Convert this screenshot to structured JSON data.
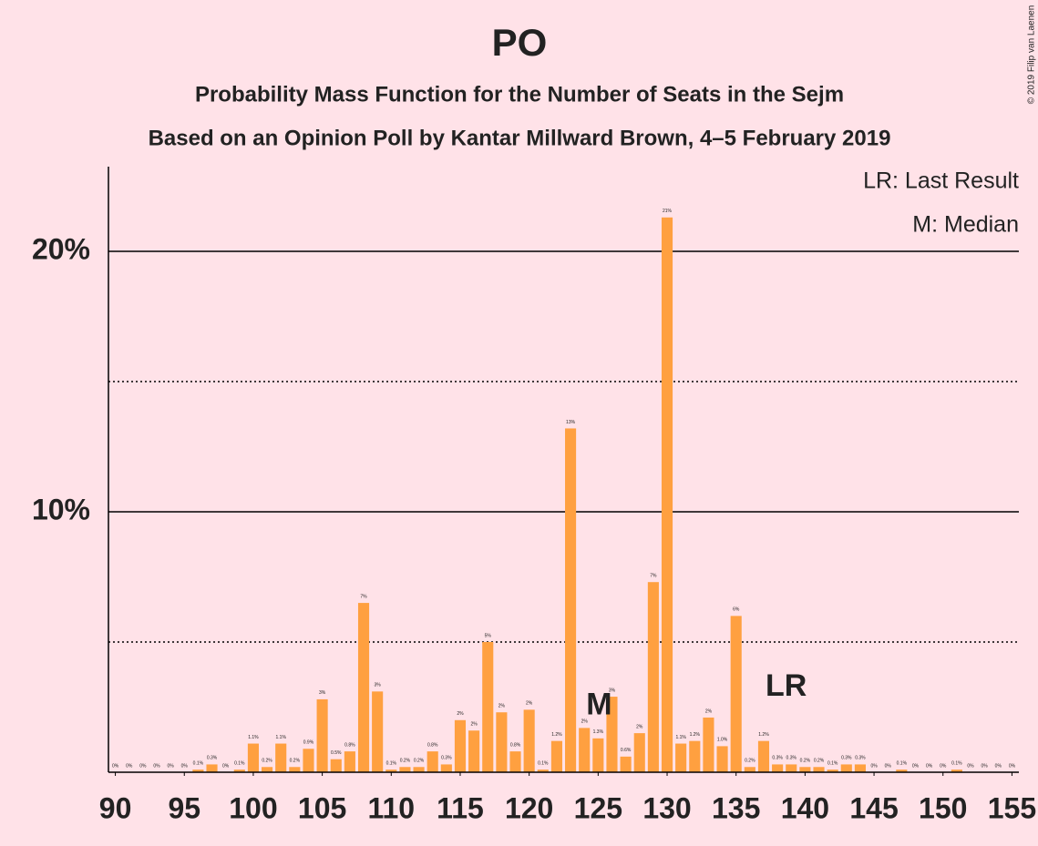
{
  "chart_data": {
    "type": "bar",
    "title": "PO",
    "subtitle": "Probability Mass Function for the Number of Seats in the Sejm",
    "subtitle2": "Based on an Opinion Poll by Kantar Millward Brown, 4–5 February 2019",
    "copyright": "© 2019 Filip van Laenen",
    "legend": [
      "LR: Last Result",
      "M: Median"
    ],
    "color": "#ffa040",
    "x": [
      90,
      91,
      92,
      93,
      94,
      95,
      96,
      97,
      98,
      99,
      100,
      101,
      102,
      103,
      104,
      105,
      106,
      107,
      108,
      109,
      110,
      111,
      112,
      113,
      114,
      115,
      116,
      117,
      118,
      119,
      120,
      121,
      122,
      123,
      124,
      125,
      126,
      127,
      128,
      129,
      130,
      131,
      132,
      133,
      134,
      135,
      136,
      137,
      138,
      139,
      140,
      141,
      142,
      143,
      144,
      145,
      146,
      147,
      148,
      149,
      150,
      151,
      152,
      153,
      154,
      155
    ],
    "values": [
      0,
      0,
      0,
      0,
      0,
      0,
      0.1,
      0.3,
      0,
      0.1,
      1.1,
      0.2,
      1.1,
      0.2,
      0.9,
      2.8,
      0.5,
      0.8,
      6.5,
      3.1,
      0.1,
      0.2,
      0.2,
      0.8,
      0.3,
      2.0,
      1.6,
      5.0,
      2.3,
      0.8,
      2.4,
      0.1,
      1.2,
      13.2,
      1.7,
      1.3,
      2.9,
      0.6,
      1.5,
      7.3,
      21.3,
      1.1,
      1.2,
      2.1,
      1.0,
      6.0,
      0.2,
      1.2,
      0.3,
      0.3,
      0.2,
      0.2,
      0.1,
      0.3,
      0.3,
      0,
      0,
      0.1,
      0,
      0,
      0,
      0.1,
      0,
      0,
      0,
      0
    ],
    "value_labels": [
      "0%",
      "0%",
      "0%",
      "0%",
      "0%",
      "0%",
      "0.1%",
      "0.3%",
      "0%",
      "0.1%",
      "1.1%",
      "0.2%",
      "1.1%",
      "0.2%",
      "0.9%",
      "3%",
      "0.5%",
      "0.8%",
      "7%",
      "3%",
      "0.1%",
      "0.2%",
      "0.2%",
      "0.8%",
      "0.3%",
      "2%",
      "2%",
      "5%",
      "2%",
      "0.8%",
      "2%",
      "0.1%",
      "1.2%",
      "13%",
      "2%",
      "1.3%",
      "3%",
      "0.6%",
      "2%",
      "7%",
      "21%",
      "1.1%",
      "1.2%",
      "2%",
      "1.0%",
      "6%",
      "0.2%",
      "1.2%",
      "0.3%",
      "0.3%",
      "0.2%",
      "0.2%",
      "0.1%",
      "0.3%",
      "0.3%",
      "0%",
      "0%",
      "0.1%",
      "0%",
      "0%",
      "0%",
      "0.1%",
      "0%",
      "0%",
      "0%",
      "0%"
    ],
    "xlim": [
      89.5,
      155.5
    ],
    "xticks": [
      90,
      95,
      100,
      105,
      110,
      115,
      120,
      125,
      130,
      135,
      140,
      145,
      150,
      155
    ],
    "ylim": [
      0,
      23.25
    ],
    "yticks": [
      {
        "value": 10,
        "label": "10%"
      },
      {
        "value": 20,
        "label": "20%"
      }
    ],
    "minor_gridlines": [
      5,
      15
    ],
    "annotations": [
      {
        "text": "M",
        "x": 124
      },
      {
        "text": "LR",
        "x": 137
      }
    ]
  }
}
